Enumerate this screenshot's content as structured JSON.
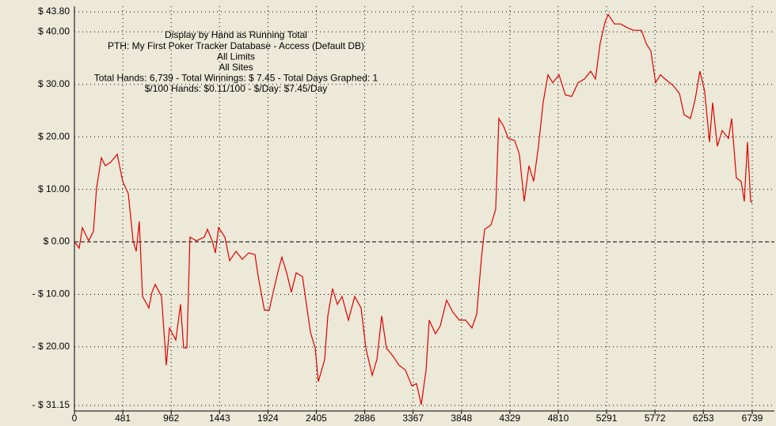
{
  "chart_data": {
    "type": "line",
    "annotations": [
      "Display by Hand as Running Total",
      "PTH: My First Poker Tracker Database - Access (Default DB)",
      "All Limits",
      "All Sites",
      "Total Hands: 6,739 - Total Winnings: $ 7.45 - Total Days Graphed: 1",
      "$/100 Hands: $0.11/100 - $/Day: $7.45/Day"
    ],
    "x": [
      0,
      47,
      79,
      142,
      189,
      220,
      268,
      307,
      362,
      425,
      480,
      535,
      583,
      614,
      645,
      677,
      740,
      771,
      803,
      866,
      913,
      945,
      1008,
      1055,
      1086,
      1118,
      1149,
      1212,
      1291,
      1323,
      1370,
      1401,
      1433,
      1496,
      1543,
      1606,
      1669,
      1732,
      1795,
      1827,
      1889,
      1937,
      1984,
      2031,
      2063,
      2110,
      2157,
      2204,
      2267,
      2346,
      2393,
      2425,
      2488,
      2519,
      2566,
      2614,
      2661,
      2724,
      2787,
      2850,
      2897,
      2960,
      3007,
      3055,
      3102,
      3165,
      3228,
      3291,
      3354,
      3401,
      3448,
      3496,
      3527,
      3590,
      3637,
      3700,
      3763,
      3826,
      3889,
      3952,
      3999,
      4047,
      4078,
      4141,
      4188,
      4220,
      4267,
      4314,
      4377,
      4424,
      4472,
      4519,
      4566,
      4613,
      4660,
      4708,
      4755,
      4818,
      4881,
      4944,
      5007,
      5070,
      5133,
      5180,
      5227,
      5275,
      5306,
      5369,
      5432,
      5495,
      5558,
      5637,
      5684,
      5731,
      5778,
      5826,
      5873,
      5951,
      6015,
      6062,
      6125,
      6172,
      6219,
      6266,
      6314,
      6345,
      6392,
      6440,
      6503,
      6534,
      6581,
      6629,
      6660,
      6692,
      6723,
      6739
    ],
    "series": [
      {
        "color": "#e00000",
        "values": [
          0,
          -1.2,
          2.7,
          0.2,
          2.0,
          10.2,
          16,
          14.5,
          15.2,
          16.7,
          11.5,
          9.2,
          0.2,
          -1.8,
          3.9,
          -10.4,
          -12.6,
          -9.6,
          -8.1,
          -10.4,
          -23.5,
          -16.4,
          -18.7,
          -11.9,
          -20.2,
          -20.2,
          0.9,
          0.2,
          0.9,
          2.4,
          0.2,
          -2.1,
          2.7,
          0.9,
          -3.6,
          -1.8,
          -3.3,
          -2.1,
          -2.4,
          -6.6,
          -13.0,
          -13.0,
          -8.9,
          -5.1,
          -2.9,
          -5.9,
          -9.6,
          -5.9,
          -6.6,
          -17.2,
          -20.2,
          -26.6,
          -22.4,
          -14.1,
          -8.9,
          -11.9,
          -10.4,
          -14.9,
          -10.4,
          -12.6,
          -20.2,
          -25.4,
          -22.4,
          -14.1,
          -20.2,
          -21.7,
          -23.5,
          -24.4,
          -27.4,
          -27.0,
          -31.0,
          -24.4,
          -14.9,
          -17.5,
          -16.0,
          -11.1,
          -13.4,
          -14.9,
          -14.9,
          -16.4,
          -13.8,
          -2.9,
          2.4,
          3.2,
          6.2,
          23.5,
          22.0,
          19.7,
          19.3,
          16.7,
          7.7,
          14.5,
          11.5,
          18.2,
          26.5,
          31.8,
          30.3,
          31.8,
          28.0,
          27.7,
          30.3,
          31.0,
          32.5,
          31.0,
          37.8,
          41.8,
          43.3,
          41.5,
          41.5,
          40.8,
          40.3,
          40.3,
          37.8,
          36.3,
          30.3,
          31.8,
          31.0,
          29.8,
          28.3,
          24.2,
          23.5,
          27.2,
          32.5,
          28.7,
          19.0,
          26.5,
          18.2,
          21.2,
          19.7,
          23.5,
          12.2,
          11.5,
          7.7,
          19.0,
          7.7,
          7.45
        ]
      }
    ],
    "xlim": [
      0,
      6739
    ],
    "xticks": [
      0,
      481,
      962,
      1443,
      1924,
      2405,
      2886,
      3367,
      3848,
      4329,
      4810,
      5291,
      5772,
      6253,
      6739
    ],
    "ylim": [
      -31.15,
      43.8
    ],
    "yticks": [
      {
        "value": 43.8,
        "label": "$ 43.80"
      },
      {
        "value": 40,
        "label": "$ 40.00"
      },
      {
        "value": 30,
        "label": "$ 30.00"
      },
      {
        "value": 20,
        "label": "$ 20.00"
      },
      {
        "value": 10,
        "label": "$ 10.00"
      },
      {
        "value": 0,
        "label": "$ 0.00"
      },
      {
        "value": -10,
        "label": "- $ 10.00"
      },
      {
        "value": -20,
        "label": "- $ 20.00"
      },
      {
        "value": -31.15,
        "label": "- $ 31.15"
      }
    ],
    "grid": true
  }
}
